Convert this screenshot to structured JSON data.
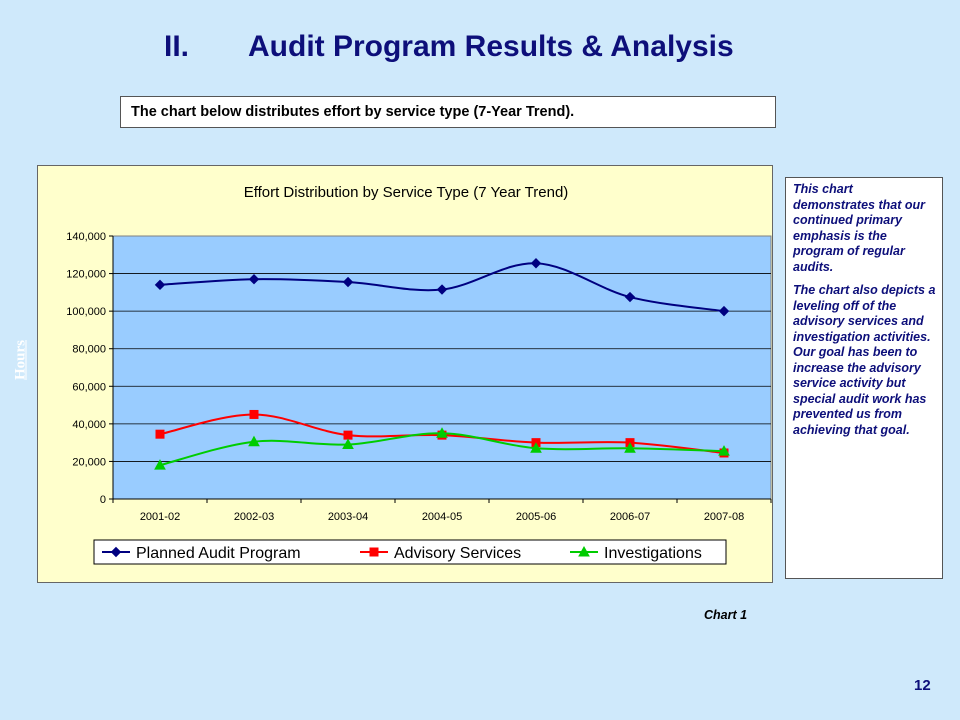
{
  "header": {
    "section_number": "II.",
    "title": "Audit Program Results & Analysis",
    "subtitle": "The chart below distributes effort by service type (7-Year Trend)."
  },
  "y_axis_label": "Hours",
  "side_note": {
    "paragraph1": "This chart demonstrates that our continued primary emphasis is the program of regular audits.",
    "paragraph2": "The chart also depicts a leveling off of the advisory services and investigation activities. Our goal has been to increase the advisory service activity but special audit work has prevented us from achieving that goal."
  },
  "chart_caption": "Chart 1",
  "page_number": "12",
  "colors": {
    "plot_background": "#99ccff",
    "chart_background": "#ffffcc",
    "title_color": "#0d0f7a"
  },
  "chart_data": {
    "type": "line",
    "title": "Effort Distribution by Service Type (7 Year Trend)",
    "categories": [
      "2001-02",
      "2002-03",
      "2003-04",
      "2004-05",
      "2005-06",
      "2006-07",
      "2007-08"
    ],
    "ylim": [
      0,
      140000
    ],
    "yticks": [
      0,
      20000,
      40000,
      60000,
      80000,
      100000,
      120000,
      140000
    ],
    "ytick_labels": [
      "0",
      "20,000",
      "40,000",
      "60,000",
      "80,000",
      "100,000",
      "120,000",
      "140,000"
    ],
    "grid": true,
    "legend": "bottom",
    "series": [
      {
        "name": "Planned Audit Program",
        "color": "#000080",
        "marker": "diamond",
        "values": [
          114000,
          117000,
          115500,
          111500,
          125500,
          107500,
          100000
        ]
      },
      {
        "name": "Advisory Services",
        "color": "#ff0000",
        "marker": "square",
        "values": [
          34500,
          45000,
          34000,
          34000,
          30000,
          30000,
          24500
        ]
      },
      {
        "name": "Investigations",
        "color": "#00cc00",
        "marker": "triangle",
        "values": [
          18000,
          30500,
          29000,
          35000,
          27000,
          27000,
          25500
        ]
      }
    ]
  }
}
